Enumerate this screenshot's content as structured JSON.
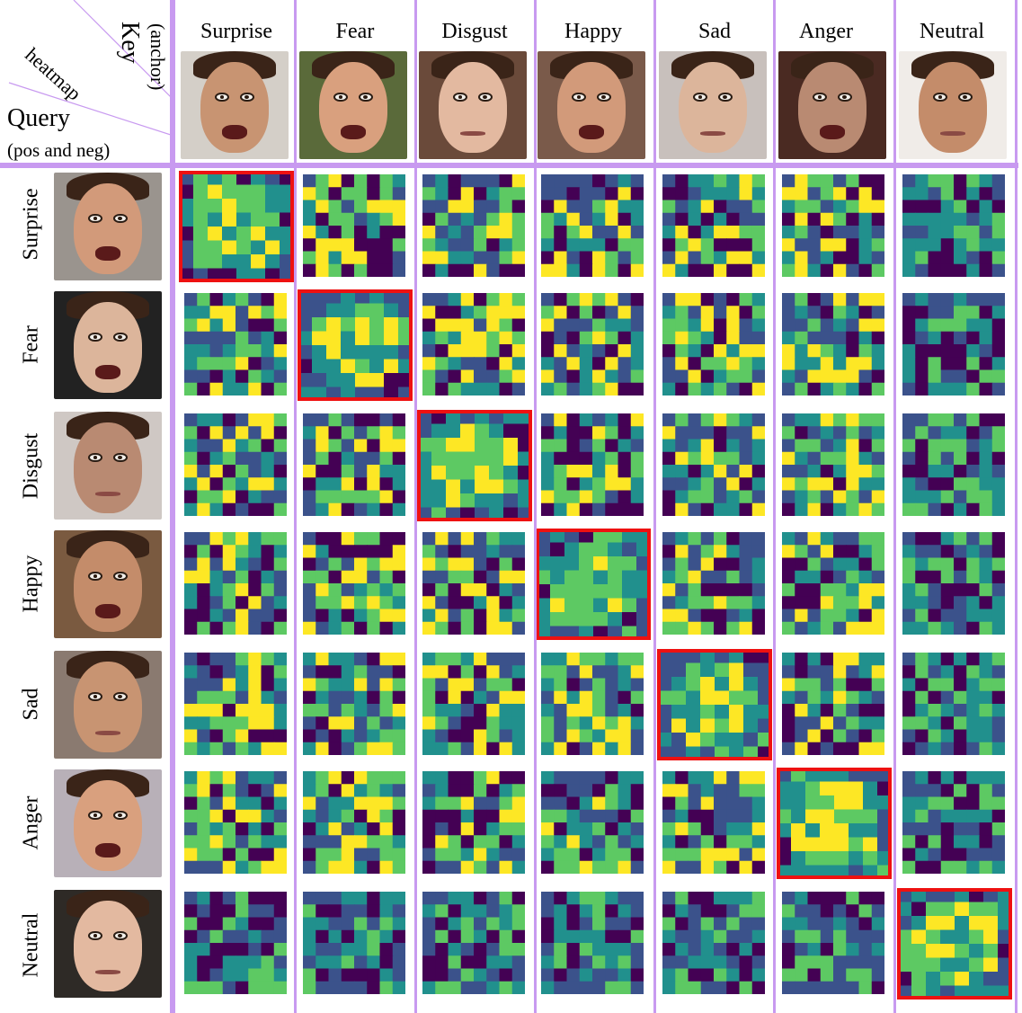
{
  "corner": {
    "key": "Key",
    "anchor": "(anchor)",
    "heatmap": "heatmap",
    "query": "Query",
    "pos_neg": "(pos and neg)"
  },
  "columns": [
    "Surprise",
    "Fear",
    "Disgust",
    "Happy",
    "Sad",
    "Anger",
    "Neutral"
  ],
  "rows": [
    "Surprise",
    "Fear",
    "Disgust",
    "Happy",
    "Sad",
    "Anger",
    "Neutral"
  ],
  "colors": {
    "divider": "#c89af0",
    "highlight": "#ee1111",
    "viridis": [
      "#440154",
      "#3b528b",
      "#21908d",
      "#5dc963",
      "#fde725"
    ]
  }
}
